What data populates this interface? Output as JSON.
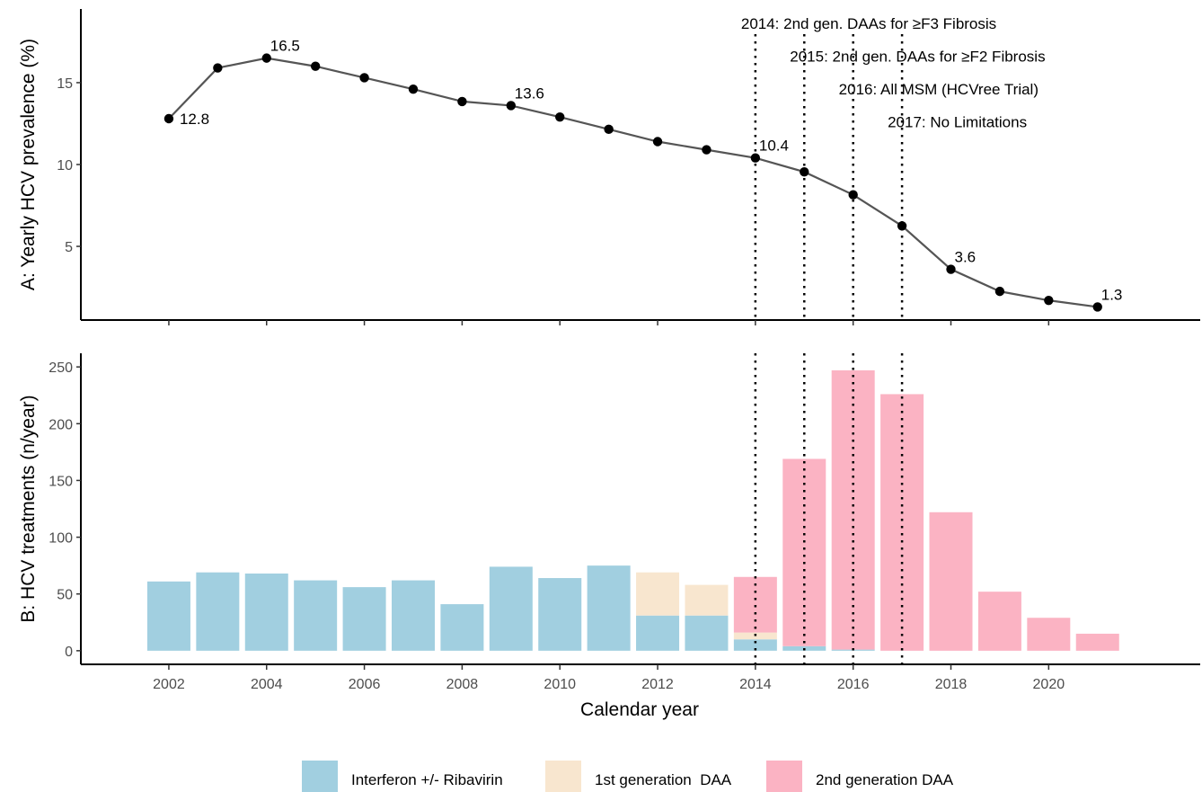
{
  "chart_data": [
    {
      "type": "line",
      "panel": "A",
      "ylabel": "A: Yearly HCV prevalence (%)",
      "xlabel": "",
      "ylim": [
        0.5,
        19.5
      ],
      "yticks": [
        5,
        10,
        15
      ],
      "x": [
        2002,
        2003,
        2004,
        2005,
        2006,
        2007,
        2008,
        2009,
        2010,
        2011,
        2012,
        2013,
        2014,
        2015,
        2016,
        2017,
        2018,
        2019,
        2020,
        2021
      ],
      "series": [
        {
          "values": [
            12.8,
            15.9,
            16.5,
            16.0,
            15.3,
            14.6,
            13.85,
            13.6,
            12.9,
            12.15,
            11.4,
            10.9,
            10.4,
            9.55,
            8.15,
            6.25,
            3.6,
            2.25,
            1.7,
            1.3
          ]
        }
      ],
      "point_labels": [
        {
          "x": 2002,
          "text": "12.8",
          "pos": "right"
        },
        {
          "x": 2004,
          "text": "16.5",
          "pos": "above"
        },
        {
          "x": 2009,
          "text": "13.6",
          "pos": "above"
        },
        {
          "x": 2014,
          "text": "10.4",
          "pos": "above"
        },
        {
          "x": 2018,
          "text": "3.6",
          "pos": "above"
        },
        {
          "x": 2021,
          "text": "1.3",
          "pos": "above"
        }
      ],
      "events": [
        {
          "x": 2014,
          "label": "2014: 2nd gen. DAAs for ≥F3 Fibrosis"
        },
        {
          "x": 2015,
          "label": "2015: 2nd gen. DAAs for ≥F2 Fibrosis"
        },
        {
          "x": 2016,
          "label": "2016: All MSM (HCVree Trial)"
        },
        {
          "x": 2017,
          "label": "2017: No Limitations"
        }
      ],
      "line_color": "#555555",
      "point_color": "#000000"
    },
    {
      "type": "bar",
      "stacked": true,
      "panel": "B",
      "ylabel": "B: HCV treatments (n/year)",
      "xlabel": "Calendar year",
      "ylim": [
        -12,
        262
      ],
      "yticks": [
        0,
        50,
        100,
        150,
        200,
        250
      ],
      "xlim": [
        2000.2,
        2023.1
      ],
      "xticks": [
        2002,
        2004,
        2006,
        2008,
        2010,
        2012,
        2014,
        2016,
        2018,
        2020
      ],
      "categories": [
        2002,
        2003,
        2004,
        2005,
        2006,
        2007,
        2008,
        2009,
        2010,
        2011,
        2012,
        2013,
        2014,
        2015,
        2016,
        2017,
        2018,
        2019,
        2020,
        2021
      ],
      "series": [
        {
          "name": "Interferon +/- Ribavirin",
          "color": "#a1cfe0",
          "values": [
            61,
            69,
            68,
            62,
            56,
            62,
            41,
            74,
            64,
            75,
            31,
            31,
            10,
            4,
            1,
            0,
            0,
            0,
            0,
            0
          ]
        },
        {
          "name": "1st generation  DAA",
          "color": "#f8e6cf",
          "values": [
            0,
            0,
            0,
            0,
            0,
            0,
            0,
            0,
            0,
            0,
            38,
            27,
            6,
            0,
            0,
            0,
            0,
            0,
            0,
            0
          ]
        },
        {
          "name": "2nd generation DAA",
          "color": "#fbb3c3",
          "values": [
            0,
            0,
            0,
            0,
            0,
            0,
            0,
            0,
            0,
            0,
            0,
            0,
            49,
            165,
            246,
            226,
            122,
            52,
            29,
            15
          ]
        }
      ],
      "legend": "bottom"
    }
  ]
}
